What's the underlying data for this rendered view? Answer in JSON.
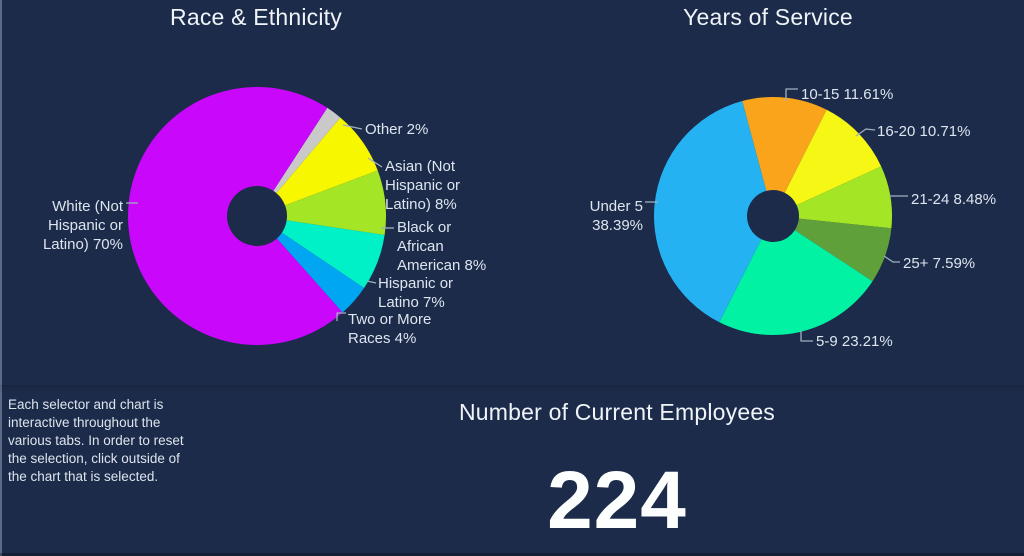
{
  "app": {
    "background": "#1c2b4a",
    "title_color": "#eff4f9",
    "label_color": "#dde5ee",
    "leader_color": "#9fb0c0"
  },
  "panels": {
    "note": {
      "text": "Each selector and chart is\ninteractive throughout the\nvarious tabs. In order to reset\nthe selection, click outside of\nthe chart that is selected."
    },
    "employees": {
      "title": "Number of Current Employees",
      "value": "224"
    }
  },
  "chart_data": [
    {
      "id": "race-ethnicity",
      "type": "pie",
      "title": "Race & Ethnicity",
      "donut": true,
      "start_angle": 33,
      "legend_position": "callout-labels",
      "slices": [
        {
          "name": "Other",
          "value": 2,
          "color": "#c9c9c9",
          "label": "Other 2%"
        },
        {
          "name": "Asian (Not Hispanic or Latino)",
          "value": 8,
          "color": "#f7f700",
          "label": "Asian (Not\nHispanic or\nLatino) 8%"
        },
        {
          "name": "Black or African American",
          "value": 8,
          "color": "#a4e626",
          "label": "Black or\nAfrican\nAmerican 8%"
        },
        {
          "name": "Hispanic or Latino",
          "value": 7,
          "color": "#00f0c8",
          "label": "Hispanic or\nLatino 7%"
        },
        {
          "name": "Two or More Races",
          "value": 4,
          "color": "#00a6f2",
          "label": "Two or More\nRaces 4%"
        },
        {
          "name": "White (Not Hispanic or Latino)",
          "value": 70,
          "color": "#c807fb",
          "label": "White (Not\nHispanic or\nLatino) 70%"
        }
      ]
    },
    {
      "id": "years-of-service",
      "type": "pie",
      "title": "Years of Service",
      "donut": true,
      "start_angle": -15,
      "legend_position": "callout-labels",
      "slices": [
        {
          "name": "10-15",
          "value": 11.61,
          "color": "#faa41b",
          "label": "10-15 11.61%"
        },
        {
          "name": "16-20",
          "value": 10.71,
          "color": "#f7f716",
          "label": "16-20 10.71%"
        },
        {
          "name": "21-24",
          "value": 8.48,
          "color": "#a4e626",
          "label": "21-24 8.48%"
        },
        {
          "name": "25+",
          "value": 7.59,
          "color": "#60a03a",
          "label": "25+ 7.59%"
        },
        {
          "name": "5-9",
          "value": 23.21,
          "color": "#00f2a2",
          "label": "5-9 23.21%"
        },
        {
          "name": "Under 5",
          "value": 38.39,
          "color": "#25b2f2",
          "label": "Under 5\n38.39%"
        }
      ]
    }
  ]
}
